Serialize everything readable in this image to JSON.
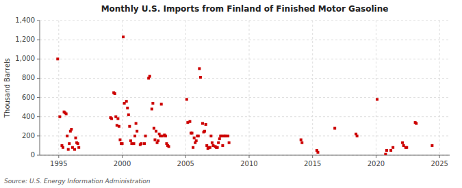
{
  "chart_data": {
    "type": "scatter",
    "title": "Monthly U.S. Imports from Finland of Finished Motor Gasoline",
    "ylabel": "Thousand Barrels",
    "annotation": "Source: U.S. Energy Information Administration",
    "color": "#cc0000",
    "marker": "square",
    "grid": true,
    "xlim": [
      1993.5,
      2025.8
    ],
    "xticks": [
      1995,
      2000,
      2005,
      2010,
      2015,
      2020,
      2025
    ],
    "ylim": [
      0,
      1400
    ],
    "yticks": [
      0,
      200,
      400,
      600,
      800,
      {
        "value": 1000,
        "label": "1,000"
      },
      {
        "value": 1200,
        "label": "1,200"
      },
      {
        "value": 1400,
        "label": "1,400"
      }
    ],
    "x": [
      1994.917,
      1995.083,
      1995.25,
      1995.333,
      1995.417,
      1995.5,
      1995.583,
      1995.667,
      1995.75,
      1995.833,
      1995.917,
      1996.0,
      1996.083,
      1996.25,
      1996.333,
      1996.417,
      1996.5,
      1996.583,
      1999.083,
      1999.167,
      1999.333,
      1999.417,
      1999.5,
      1999.583,
      1999.667,
      1999.75,
      1999.833,
      1999.917,
      2000.0,
      2000.083,
      2000.167,
      2000.333,
      2000.417,
      2000.5,
      2000.583,
      2000.667,
      2000.75,
      2000.917,
      2001.0,
      2001.083,
      2001.167,
      2001.417,
      2001.5,
      2001.75,
      2001.833,
      2002.083,
      2002.167,
      2002.333,
      2002.417,
      2002.5,
      2002.583,
      2002.667,
      2002.75,
      2002.833,
      2002.917,
      2003.0,
      2003.083,
      2003.167,
      2003.333,
      2003.417,
      2003.5,
      2003.583,
      2003.667,
      2005.083,
      2005.167,
      2005.333,
      2005.417,
      2005.5,
      2005.583,
      2005.667,
      2005.75,
      2005.833,
      2005.917,
      2006.0,
      2006.083,
      2006.167,
      2006.333,
      2006.417,
      2006.5,
      2006.583,
      2006.667,
      2006.75,
      2006.833,
      2006.917,
      2007.0,
      2007.083,
      2007.167,
      2007.333,
      2007.417,
      2007.5,
      2007.583,
      2007.667,
      2007.75,
      2007.833,
      2007.917,
      2008.0,
      2008.083,
      2008.167,
      2008.333,
      2008.417,
      2014.083,
      2014.167,
      2015.333,
      2015.417,
      2016.75,
      2018.417,
      2018.5,
      2020.083,
      2020.75,
      2020.833,
      2021.167,
      2021.333,
      2022.083,
      2022.167,
      2022.333,
      2022.417,
      2023.083,
      2023.167,
      2024.417
    ],
    "values": [
      1000,
      400,
      100,
      80,
      450,
      440,
      430,
      200,
      60,
      120,
      250,
      270,
      80,
      60,
      180,
      130,
      120,
      80,
      390,
      380,
      650,
      640,
      400,
      310,
      380,
      300,
      160,
      120,
      120,
      1230,
      540,
      560,
      490,
      420,
      300,
      150,
      120,
      120,
      200,
      330,
      250,
      110,
      120,
      120,
      200,
      800,
      820,
      480,
      540,
      280,
      160,
      250,
      130,
      150,
      220,
      200,
      530,
      200,
      210,
      200,
      120,
      100,
      90,
      580,
      340,
      350,
      230,
      230,
      80,
      180,
      130,
      150,
      200,
      200,
      900,
      810,
      330,
      240,
      250,
      320,
      100,
      70,
      80,
      80,
      200,
      130,
      100,
      90,
      80,
      80,
      130,
      170,
      200,
      200,
      100,
      200,
      200,
      200,
      200,
      130,
      160,
      130,
      50,
      30,
      280,
      220,
      200,
      580,
      10,
      50,
      50,
      80,
      130,
      100,
      80,
      80,
      340,
      330,
      100
    ]
  }
}
